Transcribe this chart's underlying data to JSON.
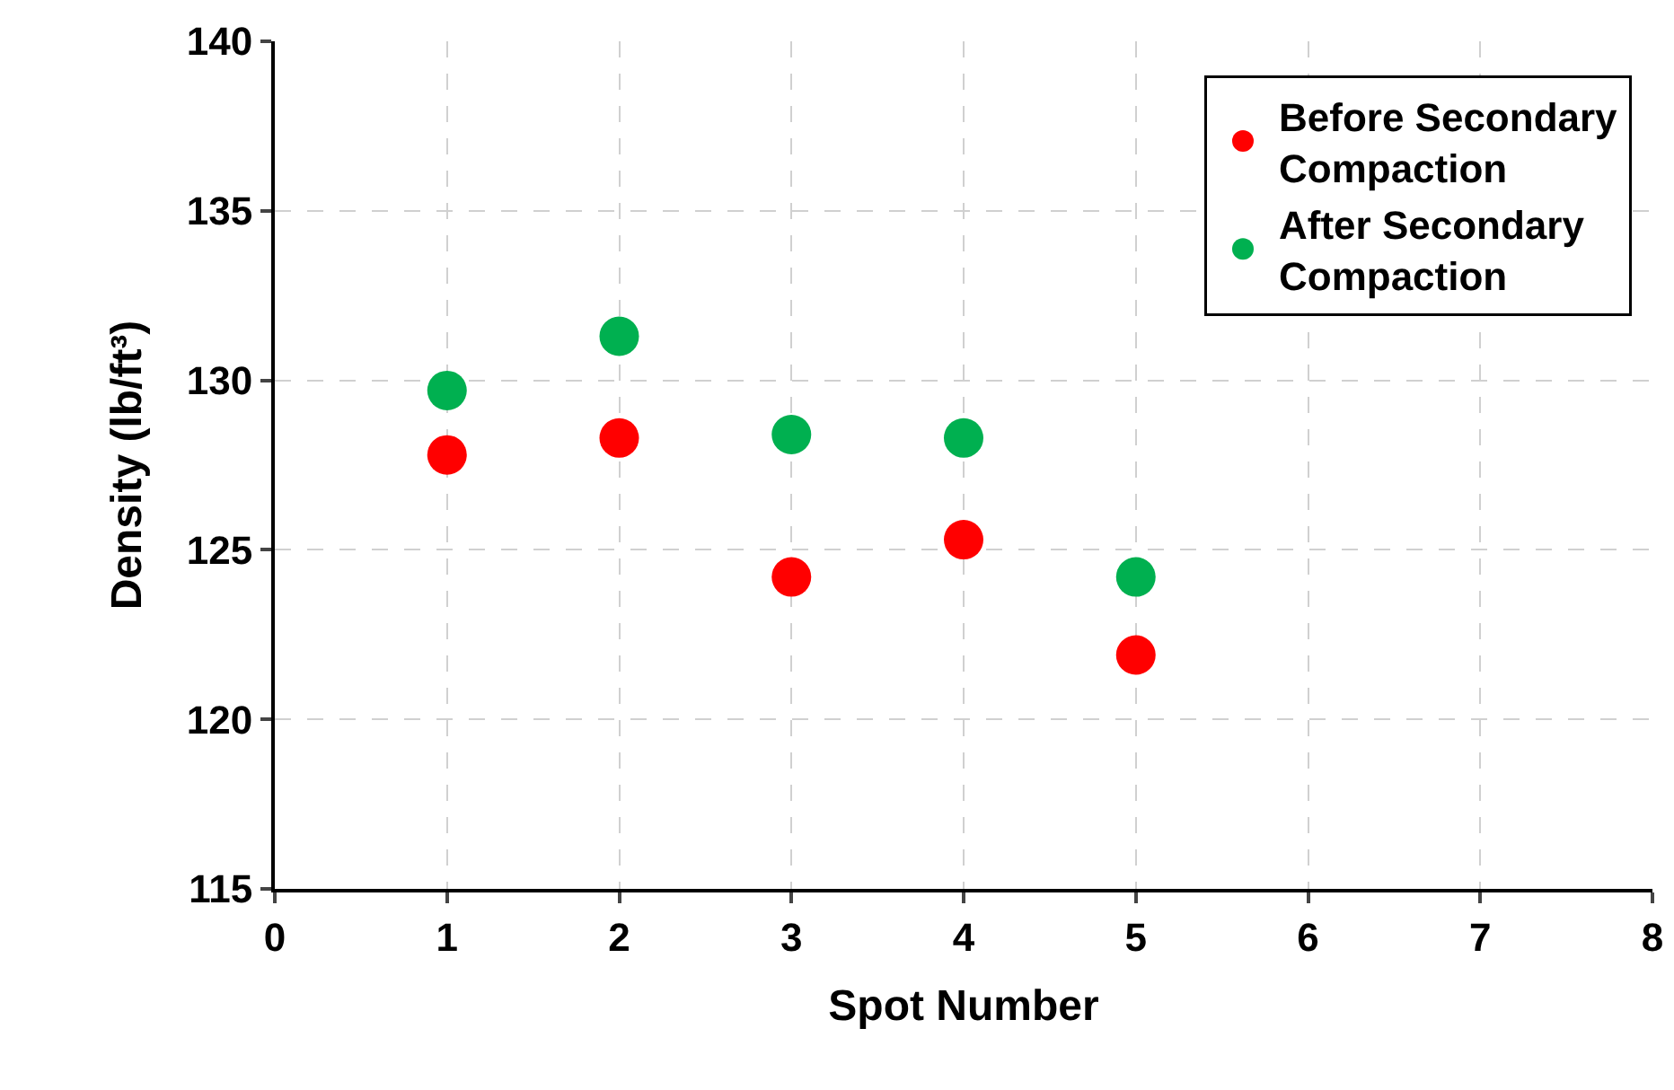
{
  "chart_data": {
    "type": "scatter",
    "xlabel": "Spot Number",
    "ylabel": "Density (lb/ft³)",
    "x": [
      1,
      2,
      3,
      4,
      5
    ],
    "series": [
      {
        "name": "Before Secondary Compaction",
        "color": "#ff0000",
        "values": [
          127.8,
          128.3,
          124.2,
          125.3,
          121.9
        ]
      },
      {
        "name": "After Secondary Compaction",
        "color": "#00b050",
        "values": [
          129.7,
          131.3,
          128.4,
          128.3,
          124.2
        ]
      }
    ],
    "xlim": [
      0,
      8
    ],
    "xticks": [
      0,
      1,
      2,
      3,
      4,
      5,
      6,
      7,
      8
    ],
    "ylim": [
      115,
      140
    ],
    "yticks": [
      115,
      120,
      125,
      130,
      135,
      140
    ],
    "grid": true,
    "legend": "top right",
    "marker": "circle"
  }
}
